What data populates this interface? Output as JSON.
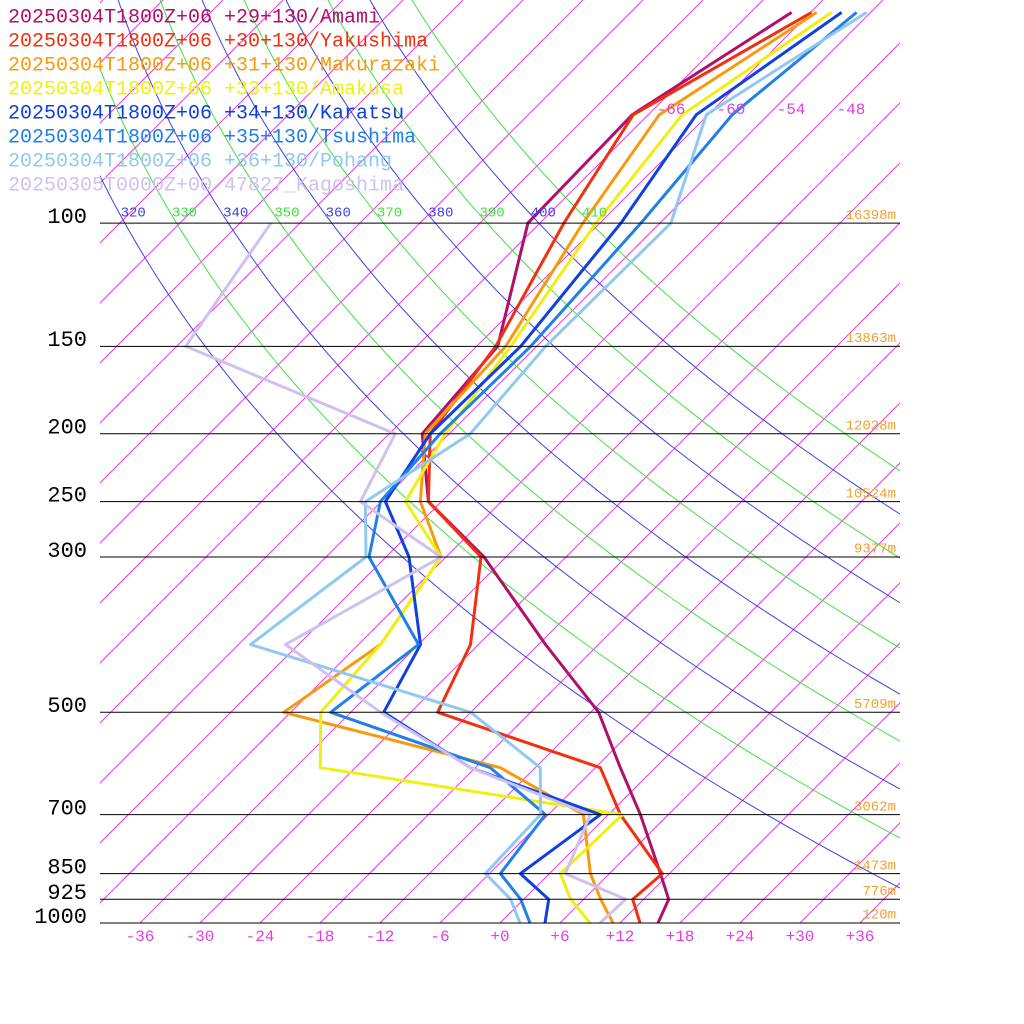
{
  "chart_data": {
    "type": "skewt",
    "legend": "upper left",
    "xlim": [
      -40,
      40
    ],
    "ylim": [
      1000,
      48
    ],
    "log_y": true,
    "xticks": [
      -36,
      -30,
      -24,
      -18,
      -12,
      -6,
      {
        "value": 0,
        "label": "+0"
      },
      {
        "value": 6,
        "label": "+6"
      },
      {
        "value": 12,
        "label": "+12"
      },
      {
        "value": 18,
        "label": "+18"
      },
      {
        "value": 24,
        "label": "+24"
      },
      {
        "value": 30,
        "label": "+30"
      },
      {
        "value": 36,
        "label": "+36"
      }
    ],
    "yticks": [
      1000,
      925,
      850,
      700,
      500,
      300,
      250,
      200,
      150,
      100
    ],
    "heights": [
      "120m",
      "776m",
      "1473m",
      "3062m",
      "5709m",
      "9377m",
      "10524m",
      "12028m",
      "13863m",
      "16398m"
    ],
    "isotherm_labels": [
      -66,
      -60,
      -54,
      -48
    ],
    "isotherm_color": "#e040e0",
    "theta_ticks": [
      320,
      330,
      340,
      350,
      360,
      370,
      380,
      390,
      400,
      410
    ],
    "theta_colors": [
      "#4040e0",
      "#40e040"
    ],
    "height_color": "#f0a030",
    "series": [
      {
        "name": "20250304T1800Z+06 +29+130/Amami",
        "color": "#b0106a",
        "pressure": [
          1000,
          925,
          850,
          700,
          600,
          500,
          400,
          300,
          250,
          200,
          150,
          100,
          70,
          50
        ],
        "values": [
          15.8,
          14.5,
          11.1,
          3.2,
          -3.5,
          -11.2,
          -23.3,
          -38.2,
          -49.3,
          -56.7,
          -57.9,
          -67.2,
          -67.6,
          -61.9
        ]
      },
      {
        "name": "20250304T1800Z+06 +30+130/Yakushima",
        "color": "#f03010",
        "pressure": [
          1000,
          925,
          850,
          700,
          600,
          500,
          400,
          300,
          250,
          200,
          150,
          100,
          70,
          50
        ],
        "values": [
          14.0,
          10.9,
          11.3,
          1.2,
          -5.5,
          -27.3,
          -30.8,
          -38.5,
          -49.3,
          -55.9,
          -58.1,
          -63.6,
          -67.5,
          -59.9
        ]
      },
      {
        "name": "20250304T1800Z+06 +31+130/Makurazaki",
        "color": "#f89a10",
        "pressure": [
          1000,
          925,
          850,
          700,
          600,
          500,
          400,
          300,
          250,
          200,
          150,
          100,
          70,
          50
        ],
        "values": [
          11.3,
          7.7,
          4.1,
          -2.5,
          -15.5,
          -42.7,
          -39.8,
          -42.5,
          -50.1,
          -56.4,
          -57.1,
          -61.7,
          -64.9,
          -59.4
        ]
      },
      {
        "name": "20250304T1800Z+06 +33+130/Amakusa",
        "color": "#f0f010",
        "pressure": [
          1000,
          925,
          850,
          700,
          600,
          500,
          400,
          300,
          250,
          200,
          150,
          100,
          70,
          50
        ],
        "values": [
          9.0,
          4.7,
          1.1,
          1.4,
          -33.5,
          -39.0,
          -39.8,
          -42.5,
          -51.6,
          -54.4,
          -56.6,
          -60.4,
          -62.6,
          -57.9
        ]
      },
      {
        "name": "20250304T1800Z+06 +34+130/Karatsu",
        "color": "#1040e0",
        "pressure": [
          1000,
          925,
          850,
          700,
          600,
          500,
          400,
          300,
          250,
          200,
          150,
          100,
          70,
          50
        ],
        "values": [
          4.5,
          2.5,
          -2.9,
          -0.8,
          -18.5,
          -32.7,
          -35.8,
          -45.7,
          -53.6,
          -55.9,
          -55.6,
          -57.9,
          -61.2,
          -56.9
        ]
      },
      {
        "name": "20250304T1800Z+06 +35+130/Tsushima",
        "color": "#2080e8",
        "pressure": [
          1000,
          925,
          850,
          700,
          600,
          500,
          400,
          300,
          250,
          200,
          150,
          100,
          70,
          50
        ],
        "values": [
          3.0,
          -0.3,
          -4.9,
          -6.3,
          -16.5,
          -38.0,
          -36.0,
          -49.7,
          -54.1,
          -54.9,
          -54.6,
          -55.9,
          -57.6,
          -55.4
        ]
      },
      {
        "name": "20250304T1800Z+06 +36+130/Pohang",
        "color": "#90c8f0",
        "pressure": [
          1000,
          925,
          850,
          700,
          600,
          500,
          400,
          300,
          250,
          200,
          150,
          100,
          70,
          50
        ],
        "values": [
          2.0,
          -1.3,
          -6.4,
          -6.8,
          -11.5,
          -24.0,
          -52.8,
          -50.0,
          -55.6,
          -51.9,
          -53.1,
          -52.9,
          -60.2,
          -54.4
        ]
      },
      {
        "name": "20250305T0000Z+00 47827_Kagoshima",
        "color": "#d0c0f0",
        "pressure": [
          1000,
          925,
          850,
          700,
          600,
          500,
          400,
          300,
          250,
          200,
          150,
          100
        ],
        "values": [
          10.0,
          10.2,
          1.6,
          -1.8,
          -18.5,
          -33.0,
          -49.3,
          -42.5,
          -56.1,
          -59.4,
          -89.1,
          -92.9
        ]
      }
    ]
  }
}
